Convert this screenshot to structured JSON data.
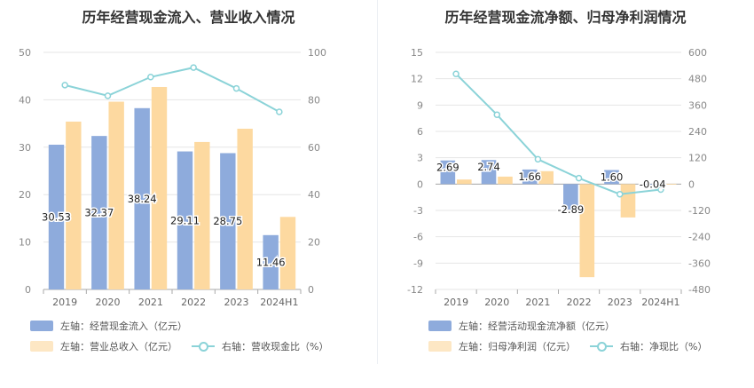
{
  "colors": {
    "blue": "#8eabdc",
    "orange": "#fdd9a0",
    "line": "#8bd3d8",
    "grid": "#e6e6e6",
    "axis": "#999999"
  },
  "chart_data": [
    {
      "type": "bar",
      "title": "历年经营现金流入、营业收入情况",
      "categories": [
        "2019",
        "2020",
        "2021",
        "2022",
        "2023",
        "2024H1"
      ],
      "left_axis": {
        "ylim": [
          0,
          50
        ],
        "ticks": [
          0,
          10,
          20,
          30,
          40,
          50
        ]
      },
      "right_axis": {
        "ylim": [
          0,
          100
        ],
        "ticks": [
          0,
          20,
          40,
          60,
          80,
          100
        ]
      },
      "series": [
        {
          "name": "左轴：经营现金流入（亿元）",
          "axis": "left",
          "kind": "bar",
          "color": "#8eabdc",
          "values": [
            30.53,
            32.37,
            38.24,
            29.11,
            28.75,
            11.46
          ],
          "labels": [
            "30.53",
            "32.37",
            "38.24",
            "29.11",
            "28.75",
            "11.46"
          ]
        },
        {
          "name": "左轴：营业总收入（亿元）",
          "axis": "left",
          "kind": "bar",
          "color": "#fdd9a0",
          "values": [
            35.4,
            39.6,
            42.7,
            31.1,
            33.9,
            15.3
          ]
        },
        {
          "name": "右轴：营收现金比（%）",
          "axis": "right",
          "kind": "line",
          "color": "#8bd3d8",
          "values": [
            86.2,
            81.7,
            89.6,
            93.6,
            84.8,
            74.9
          ]
        }
      ]
    },
    {
      "type": "bar",
      "title": "历年经营现金流净额、归母净利润情况",
      "categories": [
        "2019",
        "2020",
        "2021",
        "2022",
        "2023",
        "2024H1"
      ],
      "left_axis": {
        "ylim": [
          -12,
          15
        ],
        "ticks": [
          -12,
          -9,
          -6,
          -3,
          0,
          3,
          6,
          9,
          12,
          15
        ]
      },
      "right_axis": {
        "ylim": [
          -480,
          600
        ],
        "ticks": [
          -480,
          -360,
          -240,
          -120,
          0,
          120,
          240,
          360,
          480,
          600
        ]
      },
      "series": [
        {
          "name": "左轴：经营活动现金流净额（亿元）",
          "axis": "left",
          "kind": "bar",
          "color": "#8eabdc",
          "values": [
            2.69,
            2.74,
            1.66,
            -2.89,
            1.6,
            -0.04
          ],
          "labels": [
            "2.69",
            "2.74",
            "1.66",
            "-2.89",
            "1.60",
            "-0.04"
          ]
        },
        {
          "name": "左轴：归母净利润（亿元）",
          "axis": "left",
          "kind": "bar",
          "color": "#fdd9a0",
          "values": [
            0.52,
            0.85,
            1.47,
            -10.6,
            -3.8,
            0.03
          ]
        },
        {
          "name": "右轴：净现比（%）",
          "axis": "right",
          "kind": "line",
          "color": "#8bd3d8",
          "values": [
            502,
            316,
            113,
            27,
            -46,
            -25
          ]
        }
      ]
    }
  ]
}
